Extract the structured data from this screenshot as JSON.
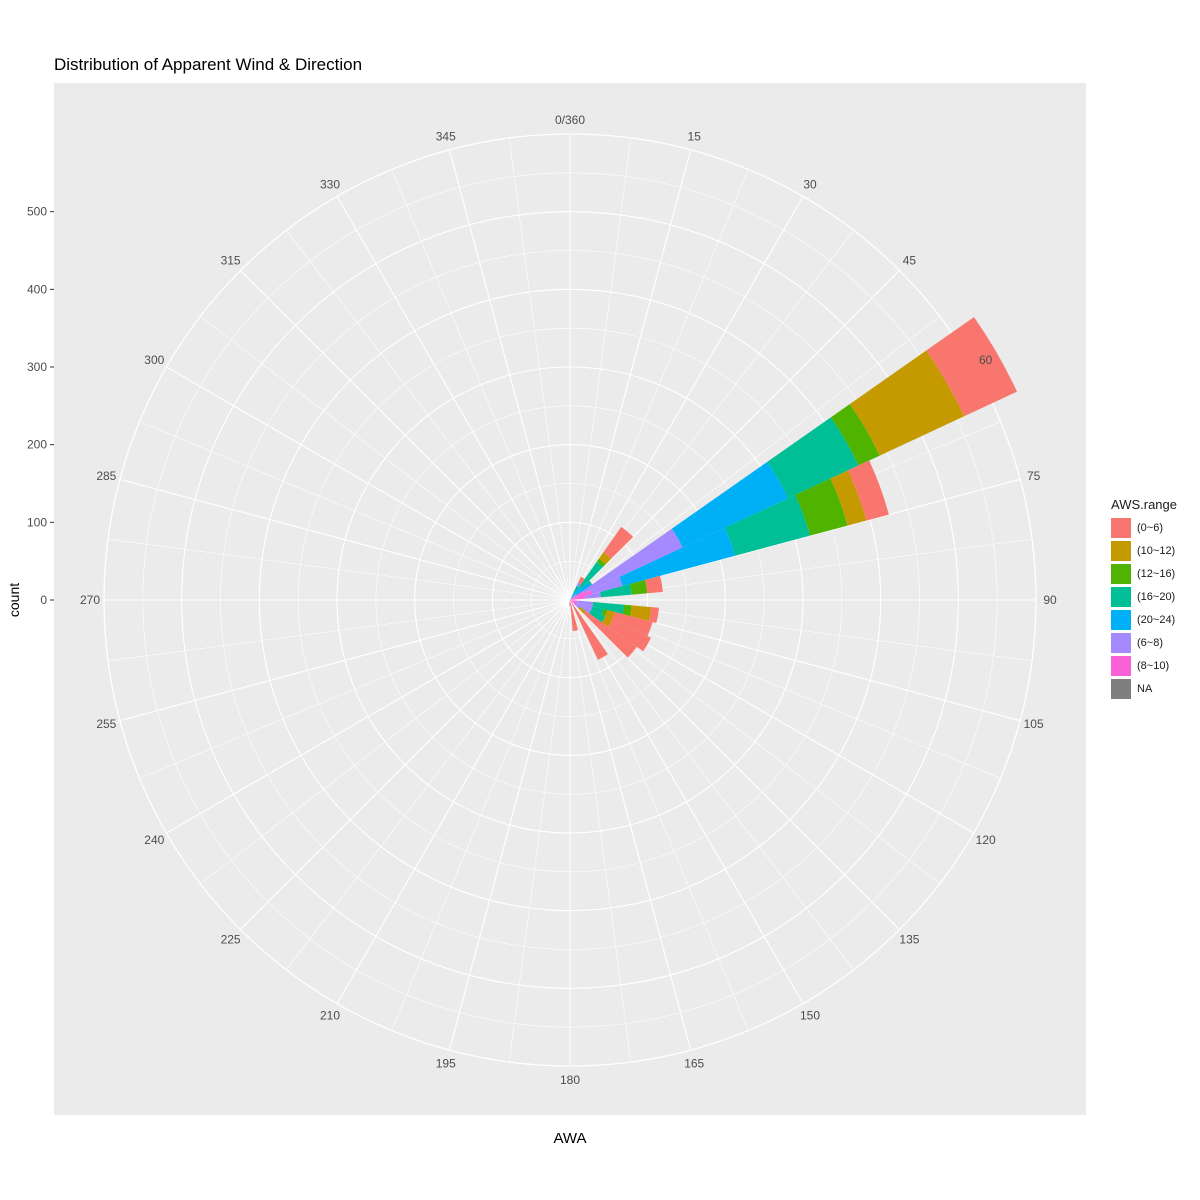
{
  "chart_data": {
    "type": "bar",
    "coord": "polar",
    "title": "Distribution of Apparent Wind & Direction",
    "xlabel": "AWA",
    "ylabel": "count",
    "theta_breaks": [
      "0/360",
      "15",
      "30",
      "45",
      "60",
      "75",
      "90",
      "105",
      "120",
      "135",
      "150",
      "165",
      "180",
      "195",
      "210",
      "225",
      "240",
      "255",
      "270",
      "285",
      "300",
      "315",
      "330",
      "345"
    ],
    "r_breaks": [
      "0",
      "100",
      "200",
      "300",
      "400",
      "500"
    ],
    "ylim": [
      0,
      600
    ],
    "bin_width_deg": 10,
    "legend_title": "AWS.range",
    "legend_position": "right",
    "grid": true,
    "series": [
      {
        "name": "(20~24)",
        "color": "#00B0F6"
      },
      {
        "name": "(16~20)",
        "color": "#00BF96"
      },
      {
        "name": "(12~16)",
        "color": "#50B300"
      },
      {
        "name": "(10~12)",
        "color": "#C49A00"
      },
      {
        "name": "(8~10)",
        "color": "#FB61D7"
      },
      {
        "name": "(6~8)",
        "color": "#A58AFF"
      },
      {
        "name": "(0~6)",
        "color": "#F8766D"
      },
      {
        "name": "NA",
        "color": "#7F7F7F"
      }
    ],
    "legend_order": [
      "(0~6)",
      "(10~12)",
      "(12~16)",
      "(16~20)",
      "(20~24)",
      "(6~8)",
      "(8~10)",
      "NA"
    ],
    "bars": [
      {
        "awa": 30,
        "stack": [
          {
            "s": "(20~24)",
            "v": 10
          },
          {
            "s": "(16~20)",
            "v": 10
          },
          {
            "s": "(6~8)",
            "v": 5
          },
          {
            "s": "(0~6)",
            "v": 8
          }
        ]
      },
      {
        "awa": 40,
        "stack": [
          {
            "s": "(20~24)",
            "v": 20
          },
          {
            "s": "(16~20)",
            "v": 40
          },
          {
            "s": "(12~16)",
            "v": 5
          },
          {
            "s": "(10~12)",
            "v": 10
          },
          {
            "s": "(0~6)",
            "v": 40
          }
        ]
      },
      {
        "awa": 50,
        "stack": [
          {
            "s": "(6~8)",
            "v": 10
          },
          {
            "s": "(20~24)",
            "v": 22
          },
          {
            "s": "(16~20)",
            "v": 3
          }
        ]
      },
      {
        "awa": 60,
        "stack": [
          {
            "s": "(8~10)",
            "v": 20
          },
          {
            "s": "(6~8)",
            "v": 140
          },
          {
            "s": "(20~24)",
            "v": 150
          },
          {
            "s": "(16~20)",
            "v": 100
          },
          {
            "s": "(12~16)",
            "v": 30
          },
          {
            "s": "(10~12)",
            "v": 120
          },
          {
            "s": "(0~6)",
            "v": 75
          }
        ]
      },
      {
        "awa": 70,
        "stack": [
          {
            "s": "(8~10)",
            "v": 30
          },
          {
            "s": "(6~8)",
            "v": 40
          },
          {
            "s": "(20~24)",
            "v": 150
          },
          {
            "s": "(16~20)",
            "v": 100
          },
          {
            "s": "(12~16)",
            "v": 50
          },
          {
            "s": "(10~12)",
            "v": 25
          },
          {
            "s": "(0~6)",
            "v": 30
          }
        ]
      },
      {
        "awa": 80,
        "stack": [
          {
            "s": "(8~10)",
            "v": 20
          },
          {
            "s": "(6~8)",
            "v": 20
          },
          {
            "s": "(16~20)",
            "v": 40
          },
          {
            "s": "(12~16)",
            "v": 20
          },
          {
            "s": "(0~6)",
            "v": 20
          }
        ]
      },
      {
        "awa": 100,
        "stack": [
          {
            "s": "(8~10)",
            "v": 10
          },
          {
            "s": "(6~8)",
            "v": 20
          },
          {
            "s": "(16~20)",
            "v": 40
          },
          {
            "s": "(12~16)",
            "v": 10
          },
          {
            "s": "(10~12)",
            "v": 25
          },
          {
            "s": "(0~6)",
            "v": 10
          }
        ]
      },
      {
        "awa": 110,
        "stack": [
          {
            "s": "(8~10)",
            "v": 10
          },
          {
            "s": "(6~8)",
            "v": 20
          },
          {
            "s": "(16~20)",
            "v": 15
          },
          {
            "s": "(12~16)",
            "v": 5
          },
          {
            "s": "(10~12)",
            "v": 10
          },
          {
            "s": "(0~6)",
            "v": 50
          }
        ]
      },
      {
        "awa": 120,
        "stack": [
          {
            "s": "(8~10)",
            "v": 10
          },
          {
            "s": "(6~8)",
            "v": 20
          },
          {
            "s": "(16~20)",
            "v": 20
          },
          {
            "s": "(10~12)",
            "v": 10
          },
          {
            "s": "(0~6)",
            "v": 55
          }
        ]
      },
      {
        "awa": 130,
        "stack": [
          {
            "s": "(8~10)",
            "v": 10
          },
          {
            "s": "(6~8)",
            "v": 5
          },
          {
            "s": "(10~12)",
            "v": 10
          },
          {
            "s": "(0~6)",
            "v": 80
          }
        ]
      },
      {
        "awa": 150,
        "stack": [
          {
            "s": "(8~10)",
            "v": 5
          },
          {
            "s": "(6~8)",
            "v": 5
          },
          {
            "s": "(0~6)",
            "v": 75
          }
        ]
      },
      {
        "awa": 170,
        "stack": [
          {
            "s": "(0~6)",
            "v": 40
          }
        ]
      },
      {
        "awa": 180,
        "stack": [
          {
            "s": "(0~6)",
            "v": 8
          }
        ]
      },
      {
        "awa": 190,
        "stack": [
          {
            "s": "(0~6)",
            "v": 5
          }
        ]
      }
    ]
  }
}
